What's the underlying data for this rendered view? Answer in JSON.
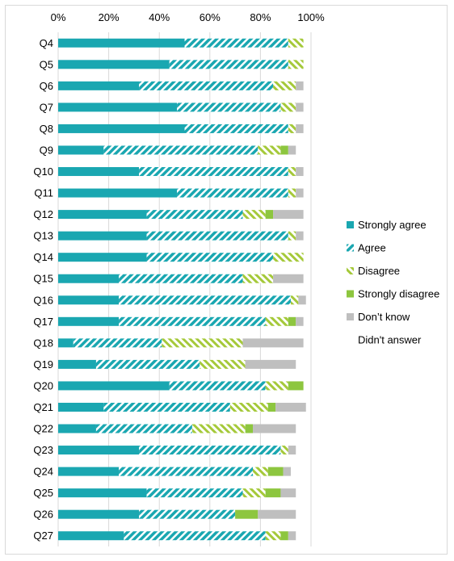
{
  "chart_data": {
    "type": "bar",
    "orientation": "horizontal",
    "stacked": "percent",
    "title": "",
    "xlabel": "",
    "ylabel": "",
    "xlim": [
      0,
      100
    ],
    "x_ticks": [
      "0%",
      "20%",
      "40%",
      "60%",
      "80%",
      "100%"
    ],
    "legend_position": "right",
    "grid": "vertical",
    "categories": [
      "Q4",
      "Q5",
      "Q6",
      "Q7",
      "Q8",
      "Q9",
      "Q10",
      "Q11",
      "Q12",
      "Q13",
      "Q14",
      "Q15",
      "Q16",
      "Q17",
      "Q18",
      "Q19",
      "Q20",
      "Q21",
      "Q22",
      "Q23",
      "Q24",
      "Q25",
      "Q26",
      "Q27"
    ],
    "series": [
      {
        "name": "Strongly agree",
        "color": "#1aa7b1",
        "pattern": "solid",
        "values": [
          50,
          44,
          32,
          47,
          50,
          18,
          32,
          47,
          35,
          35,
          35,
          24,
          24,
          24,
          6,
          15,
          44,
          18,
          15,
          32,
          24,
          35,
          32,
          26
        ]
      },
      {
        "name": "Agree",
        "color": "#1aa7b1",
        "pattern": "hatch",
        "values": [
          41,
          47,
          53,
          41,
          41,
          61,
          59,
          44,
          38,
          56,
          50,
          49,
          68,
          58,
          35,
          41,
          38,
          50,
          38,
          56,
          53,
          38,
          38,
          56
        ]
      },
      {
        "name": "Disagree",
        "color": "#a5c93a",
        "pattern": "hatch",
        "values": [
          6,
          6,
          9,
          6,
          3,
          9,
          3,
          3,
          9,
          3,
          12,
          12,
          3,
          9,
          32,
          18,
          9,
          15,
          21,
          3,
          6,
          9,
          0,
          6
        ]
      },
      {
        "name": "Strongly disagree",
        "color": "#8dc63f",
        "pattern": "solid",
        "values": [
          0,
          0,
          0,
          0,
          0,
          3,
          0,
          0,
          3,
          0,
          0,
          0,
          0,
          3,
          0,
          0,
          6,
          3,
          3,
          0,
          6,
          6,
          9,
          3
        ]
      },
      {
        "name": "Don’t know",
        "color": "#bfbfbf",
        "pattern": "solid",
        "values": [
          0,
          0,
          3,
          3,
          3,
          3,
          3,
          3,
          12,
          3,
          0,
          12,
          3,
          3,
          24,
          20,
          0,
          12,
          17,
          3,
          3,
          6,
          15,
          3
        ]
      },
      {
        "name": "Didn't answer",
        "color": "#ffffff",
        "pattern": "none",
        "values": [
          3,
          3,
          3,
          3,
          3,
          6,
          3,
          3,
          3,
          3,
          3,
          3,
          2,
          3,
          3,
          6,
          3,
          2,
          6,
          6,
          8,
          6,
          6,
          6
        ]
      }
    ]
  }
}
